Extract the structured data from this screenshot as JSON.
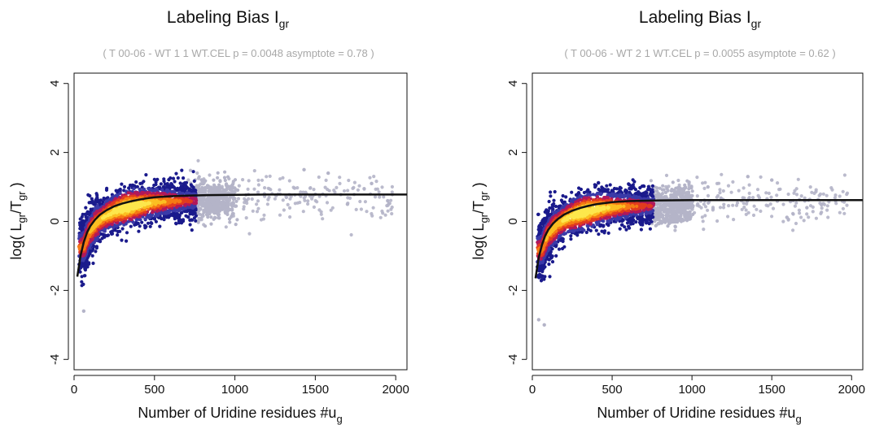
{
  "chart_data": [
    {
      "type": "scatter",
      "title": "Labeling Bias I",
      "title_sub": "gr",
      "subtitle": "( T 00-06 - WT 1 1 WT.CEL  p = 0.0048  asymptote = 0.78 )",
      "xlabel": "Number of Uridine residues #u",
      "xlabel_sub": "g",
      "ylabel_parts": [
        "log( L",
        "gr",
        "/T",
        "gr",
        " )"
      ],
      "xlim": [
        0,
        2070
      ],
      "ylim": [
        -4.3,
        4.3
      ],
      "xticks": [
        0,
        500,
        1000,
        1500,
        2000
      ],
      "yticks": [
        -4,
        -2,
        0,
        2,
        4
      ],
      "grid": false,
      "density_colors": [
        "#1a1a8c",
        "#3a3aa8",
        "#b1185a",
        "#e23b1f",
        "#f57a14",
        "#fbbf22",
        "#fde74c"
      ],
      "outlier_color": "#b4b4c8",
      "fit_curve": {
        "x": [
          20,
          40,
          60,
          80,
          100,
          130,
          160,
          200,
          250,
          300,
          350,
          400,
          450,
          500,
          600,
          700,
          800,
          1000,
          1200,
          1500,
          1800,
          2070
        ],
        "y": [
          -1.6,
          -1.0,
          -0.6,
          -0.33,
          -0.14,
          0.05,
          0.19,
          0.32,
          0.44,
          0.52,
          0.58,
          0.63,
          0.67,
          0.7,
          0.73,
          0.75,
          0.76,
          0.77,
          0.78,
          0.78,
          0.78,
          0.78
        ]
      },
      "asymptote": 0.78,
      "outliers": [
        [
          60,
          -2.6
        ],
        [
          1580,
          1.4
        ],
        [
          1850,
          1.1
        ],
        [
          1430,
          1.5
        ],
        [
          1700,
          0.5
        ],
        [
          1950,
          0.6
        ],
        [
          1320,
          0.7
        ]
      ]
    },
    {
      "type": "scatter",
      "title": "Labeling Bias I",
      "title_sub": "gr",
      "subtitle": "( T 00-06 - WT 2 1 WT.CEL  p = 0.0055  asymptote = 0.62 )",
      "xlabel": "Number of Uridine residues #u",
      "xlabel_sub": "g",
      "ylabel_parts": [
        "log( L",
        "gr",
        "/T",
        "gr",
        " )"
      ],
      "xlim": [
        0,
        2070
      ],
      "ylim": [
        -4.3,
        4.3
      ],
      "xticks": [
        0,
        500,
        1000,
        1500,
        2000
      ],
      "yticks": [
        -4,
        -2,
        0,
        2,
        4
      ],
      "grid": false,
      "density_colors": [
        "#1a1a8c",
        "#3a3aa8",
        "#b1185a",
        "#e23b1f",
        "#f57a14",
        "#fbbf22",
        "#fde74c"
      ],
      "outlier_color": "#b4b4c8",
      "fit_curve": {
        "x": [
          20,
          40,
          60,
          80,
          100,
          130,
          160,
          200,
          250,
          300,
          350,
          400,
          450,
          500,
          600,
          700,
          800,
          1000,
          1200,
          1500,
          1800,
          2070
        ],
        "y": [
          -1.65,
          -1.05,
          -0.68,
          -0.42,
          -0.24,
          -0.06,
          0.07,
          0.2,
          0.31,
          0.39,
          0.45,
          0.5,
          0.53,
          0.56,
          0.59,
          0.6,
          0.61,
          0.62,
          0.62,
          0.62,
          0.62,
          0.62
        ]
      },
      "asymptote": 0.62,
      "outliers": [
        [
          40,
          -2.85
        ],
        [
          75,
          -3.0
        ],
        [
          1350,
          1.3
        ],
        [
          1500,
          1.2
        ],
        [
          1900,
          0.6
        ],
        [
          1720,
          0.4
        ],
        [
          1100,
          1.0
        ]
      ]
    }
  ]
}
